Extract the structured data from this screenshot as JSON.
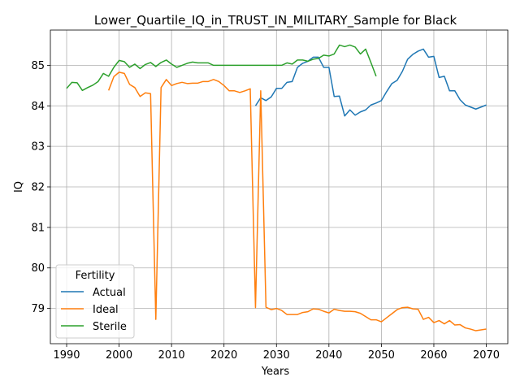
{
  "chart_data": {
    "type": "line",
    "title": "Lower_Quartile_IQ_in_TRUST_IN_MILITARY_Sample for Black",
    "xlabel": "Years",
    "ylabel": "IQ",
    "xlim": [
      1986.9,
      2074.1
    ],
    "ylim": [
      78.13,
      85.87
    ],
    "xticks": [
      1990,
      2000,
      2010,
      2020,
      2030,
      2040,
      2050,
      2060,
      2070
    ],
    "yticks": [
      79,
      80,
      81,
      82,
      83,
      84,
      85
    ],
    "grid": true,
    "legend": {
      "title": "Fertility",
      "placement": "lower-left"
    },
    "series": [
      {
        "name": "Actual",
        "color": "#1f77b4",
        "x": [
          2026,
          2027,
          2028,
          2029,
          2030,
          2031,
          2032,
          2033,
          2034,
          2035,
          2036,
          2037,
          2038,
          2039,
          2040,
          2041,
          2042,
          2043,
          2044,
          2045,
          2046,
          2047,
          2048,
          2049,
          2050,
          2051,
          2052,
          2053,
          2054,
          2055,
          2056,
          2057,
          2058,
          2059,
          2060,
          2061,
          2062,
          2063,
          2064,
          2065,
          2066,
          2067,
          2068,
          2069,
          2070
        ],
        "y": [
          84.0,
          84.2,
          84.13,
          84.22,
          84.43,
          84.43,
          84.58,
          84.6,
          84.95,
          85.05,
          85.1,
          85.2,
          85.2,
          84.95,
          84.95,
          84.23,
          84.24,
          83.75,
          83.9,
          83.77,
          83.85,
          83.9,
          84.02,
          84.07,
          84.13,
          84.35,
          84.55,
          84.63,
          84.85,
          85.15,
          85.27,
          85.35,
          85.4,
          85.2,
          85.22,
          84.7,
          84.73,
          84.37,
          84.37,
          84.15,
          84.02,
          83.97,
          83.92,
          83.97,
          84.02
        ]
      },
      {
        "name": "Ideal",
        "color": "#ff7f0e",
        "x": [
          1998,
          1999,
          2000,
          2001,
          2002,
          2003,
          2004,
          2005,
          2006,
          2007,
          2008,
          2009,
          2010,
          2011,
          2012,
          2013,
          2014,
          2015,
          2016,
          2017,
          2018,
          2019,
          2020,
          2021,
          2022,
          2023,
          2024,
          2025,
          2026,
          2027,
          2028,
          2029,
          2030,
          2031,
          2032,
          2033,
          2034,
          2035,
          2036,
          2037,
          2038,
          2039,
          2040,
          2041,
          2042,
          2043,
          2044,
          2045,
          2046,
          2047,
          2048,
          2049,
          2050,
          2051,
          2052,
          2053,
          2054,
          2055,
          2056,
          2057,
          2058,
          2059,
          2060,
          2061,
          2062,
          2063,
          2064,
          2065,
          2066,
          2067,
          2068,
          2069,
          2070
        ],
        "y": [
          84.38,
          84.72,
          84.83,
          84.8,
          84.53,
          84.45,
          84.23,
          84.32,
          84.3,
          78.73,
          84.45,
          84.65,
          84.5,
          84.55,
          84.58,
          84.55,
          84.56,
          84.56,
          84.6,
          84.6,
          84.65,
          84.6,
          84.5,
          84.37,
          84.37,
          84.33,
          84.37,
          84.42,
          79.02,
          84.37,
          79.03,
          78.97,
          79.0,
          78.95,
          78.85,
          78.85,
          78.85,
          78.9,
          78.92,
          78.99,
          78.98,
          78.93,
          78.89,
          78.98,
          78.95,
          78.93,
          78.93,
          78.92,
          78.88,
          78.8,
          78.72,
          78.72,
          78.67,
          78.77,
          78.87,
          78.97,
          79.02,
          79.03,
          78.99,
          78.98,
          78.73,
          78.78,
          78.65,
          78.7,
          78.62,
          78.7,
          78.59,
          78.6,
          78.52,
          78.49,
          78.45,
          78.47,
          78.49
        ]
      },
      {
        "name": "Sterile",
        "color": "#2ca02c",
        "x": [
          1990,
          1991,
          1992,
          1993,
          1994,
          1995,
          1996,
          1997,
          1998,
          1999,
          2000,
          2001,
          2002,
          2003,
          2004,
          2005,
          2006,
          2007,
          2008,
          2009,
          2010,
          2011,
          2012,
          2013,
          2014,
          2015,
          2016,
          2017,
          2018,
          2019,
          2020,
          2021,
          2022,
          2023,
          2024,
          2025,
          2026,
          2027,
          2028,
          2029,
          2030,
          2031,
          2032,
          2033,
          2034,
          2035,
          2036,
          2037,
          2038,
          2039,
          2040,
          2041,
          2042,
          2043,
          2044,
          2045,
          2046,
          2047,
          2048,
          2049
        ],
        "y": [
          84.43,
          84.58,
          84.57,
          84.38,
          84.45,
          84.51,
          84.6,
          84.8,
          84.73,
          84.95,
          85.12,
          85.09,
          84.95,
          85.03,
          84.92,
          85.02,
          85.07,
          84.97,
          85.07,
          85.13,
          85.03,
          84.95,
          85.0,
          85.05,
          85.08,
          85.06,
          85.06,
          85.06,
          85.0,
          85.0,
          85.0,
          85.0,
          85.0,
          85.0,
          85.0,
          85.0,
          85.0,
          85.0,
          85.0,
          85.0,
          85.0,
          85.0,
          85.06,
          85.03,
          85.13,
          85.13,
          85.1,
          85.15,
          85.17,
          85.25,
          85.23,
          85.28,
          85.5,
          85.46,
          85.5,
          85.45,
          85.28,
          85.4,
          85.07,
          84.73
        ]
      }
    ]
  }
}
